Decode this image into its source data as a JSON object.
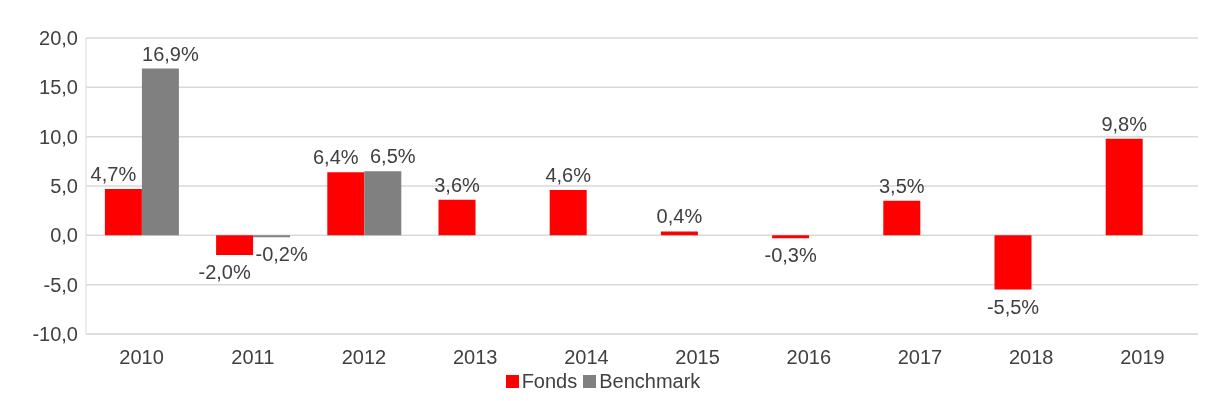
{
  "chart_data": {
    "type": "bar",
    "categories": [
      "2010",
      "2011",
      "2012",
      "2013",
      "2014",
      "2015",
      "2016",
      "2017",
      "2018",
      "2019"
    ],
    "series": [
      {
        "name": "Fonds",
        "color": "#ff0000",
        "values": [
          4.7,
          -2.0,
          6.4,
          3.6,
          4.6,
          0.4,
          -0.3,
          3.5,
          -5.5,
          9.8
        ],
        "value_labels": [
          "4,7%",
          "-2,0%",
          "6,4%",
          "3,6%",
          "4,6%",
          "0,4%",
          "-0,3%",
          "3,5%",
          "-5,5%",
          "9,8%"
        ]
      },
      {
        "name": "Benchmark",
        "color": "#808080",
        "values": [
          16.9,
          -0.2,
          6.5,
          null,
          null,
          null,
          null,
          null,
          null,
          null
        ],
        "value_labels": [
          "16,9%",
          "-0,2%",
          "6,5%",
          null,
          null,
          null,
          null,
          null,
          null,
          null
        ]
      }
    ],
    "ylim": [
      -10,
      20
    ],
    "yticks": [
      {
        "value": -10,
        "label": "-10,0"
      },
      {
        "value": -5,
        "label": "-5,0"
      },
      {
        "value": 0,
        "label": "0,0"
      },
      {
        "value": 5,
        "label": "5,0"
      },
      {
        "value": 10,
        "label": "10,0"
      },
      {
        "value": 15,
        "label": "15,0"
      },
      {
        "value": 20,
        "label": "20,0"
      }
    ],
    "grid": "y",
    "legend": "bottom"
  }
}
